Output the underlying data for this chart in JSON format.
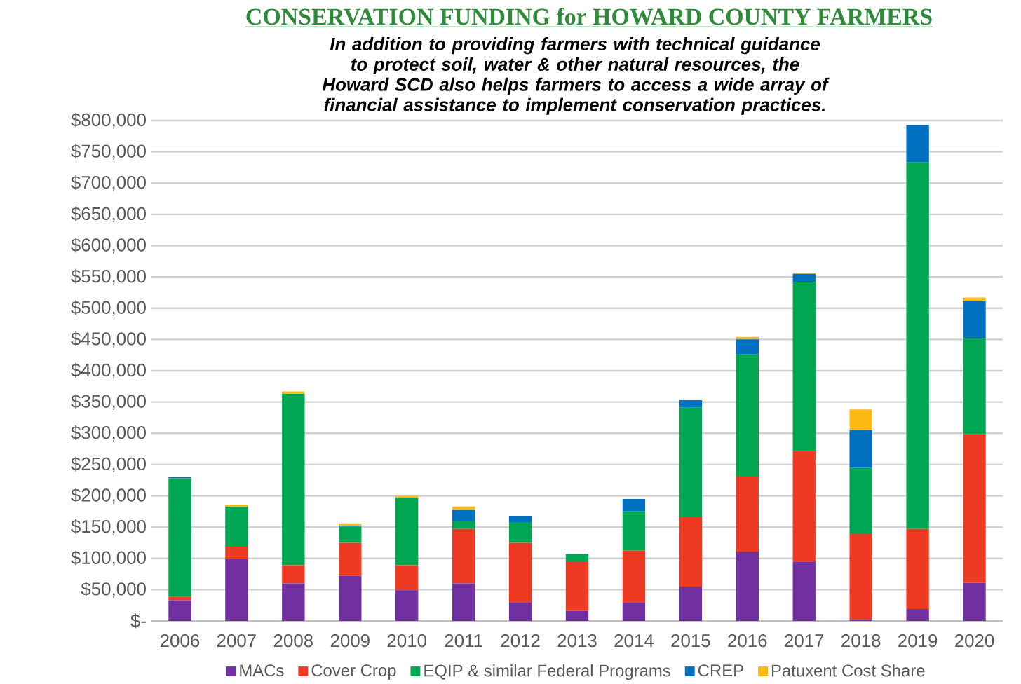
{
  "chart_data": {
    "type": "bar",
    "stacked": true,
    "title": "CONSERVATION FUNDING for HOWARD COUNTY FARMERS",
    "subtitle": "In addition to providing farmers with technical guidance to protect soil, water & other natural resources, the Howard SCD also helps farmers to access a wide array of financial assistance to implement conservation practices.",
    "categories": [
      "2006",
      "2007",
      "2008",
      "2009",
      "2010",
      "2011",
      "2012",
      "2013",
      "2014",
      "2015",
      "2016",
      "2017",
      "2018",
      "2019",
      "2020"
    ],
    "series": [
      {
        "name": "MACs",
        "color": "#7030a0",
        "values": [
          33000,
          99000,
          60000,
          72000,
          49000,
          60000,
          30000,
          16000,
          30000,
          55000,
          111000,
          95000,
          3000,
          19000,
          61000
        ]
      },
      {
        "name": "Cover Crop",
        "color": "#ee3a23",
        "values": [
          6000,
          21000,
          29000,
          53000,
          40000,
          87000,
          95000,
          78000,
          83000,
          112000,
          121000,
          177000,
          136000,
          128000,
          238000
        ]
      },
      {
        "name": "EQIP & similar Federal Programs",
        "color": "#00a651",
        "values": [
          189000,
          63000,
          274000,
          26000,
          108000,
          12000,
          33000,
          13000,
          62000,
          174000,
          194000,
          270000,
          106000,
          586000,
          153000
        ]
      },
      {
        "name": "CREP",
        "color": "#0070c0",
        "values": [
          2000,
          0,
          0,
          1000,
          0,
          18000,
          10000,
          0,
          20000,
          12000,
          24000,
          13000,
          60000,
          60000,
          59000
        ]
      },
      {
        "name": "Patuxent Cost Share",
        "color": "#fdb913",
        "values": [
          0,
          3000,
          4000,
          4000,
          3000,
          6000,
          0,
          0,
          0,
          0,
          4000,
          1000,
          33000,
          0,
          6000
        ]
      }
    ],
    "ylim": [
      0,
      800000
    ],
    "yticks": [
      {
        "value": 0,
        "label": "$-"
      },
      {
        "value": 50000,
        "label": "$50,000"
      },
      {
        "value": 100000,
        "label": "$100,000"
      },
      {
        "value": 150000,
        "label": "$150,000"
      },
      {
        "value": 200000,
        "label": "$200,000"
      },
      {
        "value": 250000,
        "label": "$250,000"
      },
      {
        "value": 300000,
        "label": "$300,000"
      },
      {
        "value": 350000,
        "label": "$350,000"
      },
      {
        "value": 400000,
        "label": "$400,000"
      },
      {
        "value": 450000,
        "label": "$450,000"
      },
      {
        "value": 500000,
        "label": "$500,000"
      },
      {
        "value": 550000,
        "label": "$550,000"
      },
      {
        "value": 600000,
        "label": "$600,000"
      },
      {
        "value": 650000,
        "label": "$650,000"
      },
      {
        "value": 700000,
        "label": "$700,000"
      },
      {
        "value": 750000,
        "label": "$750,000"
      },
      {
        "value": 800000,
        "label": "$800,000"
      }
    ],
    "grid": "y",
    "legend": "bottom"
  }
}
